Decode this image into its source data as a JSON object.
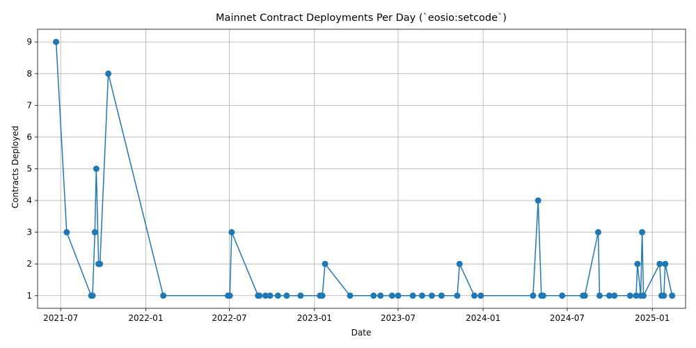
{
  "chart_data": {
    "type": "line",
    "title": "Mainnet Contract Deployments Per Day (`eosio:setcode`)",
    "xlabel": "Date",
    "ylabel": "Contracts Deployed",
    "x_ticks": [
      "2021-07",
      "2022-01",
      "2022-07",
      "2023-01",
      "2023-07",
      "2024-01",
      "2024-07",
      "2025-01"
    ],
    "y_ticks": [
      1,
      2,
      3,
      4,
      5,
      6,
      7,
      8,
      9
    ],
    "xlim": [
      "2021-05-12",
      "2025-03-14"
    ],
    "ylim": [
      0.6,
      9.4
    ],
    "grid": true,
    "color": "#1f77b4",
    "marker": "circle",
    "series": [
      {
        "x": [
          "2021-06-21",
          "2021-07-14",
          "2021-09-05",
          "2021-09-08",
          "2021-09-13",
          "2021-09-16",
          "2021-09-21",
          "2021-09-24",
          "2021-10-12",
          "2022-02-08",
          "2022-06-28",
          "2022-07-02",
          "2022-07-06",
          "2022-09-01",
          "2022-09-04",
          "2022-09-17",
          "2022-09-27",
          "2022-10-14",
          "2022-11-02",
          "2022-12-02",
          "2023-01-13",
          "2023-01-18",
          "2023-01-24",
          "2023-03-19",
          "2023-05-09",
          "2023-05-24",
          "2023-06-18",
          "2023-07-01",
          "2023-08-02",
          "2023-08-22",
          "2023-09-12",
          "2023-10-03",
          "2023-11-06",
          "2023-11-11",
          "2023-12-13",
          "2023-12-27",
          "2024-04-18",
          "2024-04-29",
          "2024-05-06",
          "2024-05-10",
          "2024-06-20",
          "2024-08-04",
          "2024-08-08",
          "2024-09-06",
          "2024-09-09",
          "2024-09-30",
          "2024-10-11",
          "2024-11-14",
          "2024-11-27",
          "2024-11-30",
          "2024-12-07",
          "2024-12-10",
          "2024-12-13",
          "2025-01-17",
          "2025-01-21",
          "2025-01-26",
          "2025-01-29",
          "2025-02-13"
        ],
        "y": [
          9,
          3,
          1,
          1,
          3,
          5,
          2,
          2,
          8,
          1,
          1,
          1,
          3,
          1,
          1,
          1,
          1,
          1,
          1,
          1,
          1,
          1,
          2,
          1,
          1,
          1,
          1,
          1,
          1,
          1,
          1,
          1,
          1,
          2,
          1,
          1,
          1,
          4,
          1,
          1,
          1,
          1,
          1,
          3,
          1,
          1,
          1,
          1,
          1,
          2,
          1,
          3,
          1,
          2,
          1,
          1,
          2,
          1
        ]
      }
    ]
  }
}
